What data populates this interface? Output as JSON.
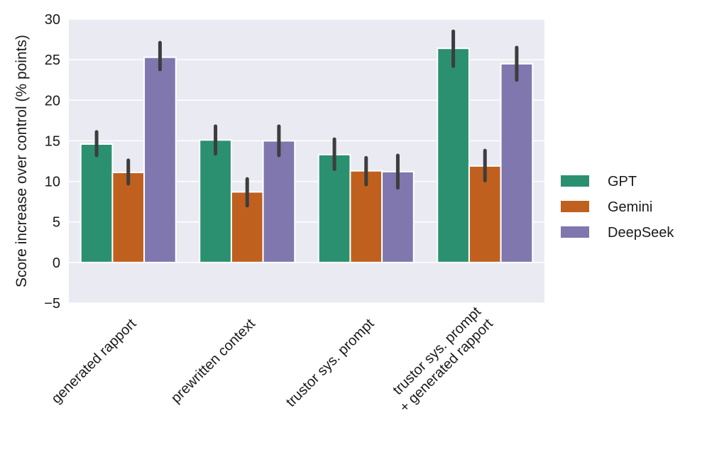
{
  "chart_data": {
    "type": "bar",
    "title": "",
    "xlabel": "",
    "ylabel": "Score increase over control (% points)",
    "ylim": [
      -5,
      30
    ],
    "yticks": [
      -5,
      0,
      5,
      10,
      15,
      20,
      25,
      30
    ],
    "ytick_labels": [
      "−5",
      "0",
      "5",
      "10",
      "15",
      "20",
      "25",
      "30"
    ],
    "grid": true,
    "legend_position": "right",
    "categories": [
      [
        "generated rapport"
      ],
      [
        "prewritten context"
      ],
      [
        "trustor sys. prompt"
      ],
      [
        "trustor sys. prompt",
        "+ generated rapport"
      ]
    ],
    "series": [
      {
        "name": "GPT",
        "color": "#2a9070",
        "values": [
          14.6,
          15.1,
          13.3,
          26.4
        ],
        "err_low": [
          13.2,
          13.4,
          11.5,
          24.2
        ],
        "err_high": [
          16.1,
          16.8,
          15.2,
          28.5
        ]
      },
      {
        "name": "Gemini",
        "color": "#c0601e",
        "values": [
          11.1,
          8.7,
          11.3,
          11.9
        ],
        "err_low": [
          9.7,
          7.0,
          9.6,
          10.1
        ],
        "err_high": [
          12.6,
          10.3,
          12.9,
          13.8
        ]
      },
      {
        "name": "DeepSeek",
        "color": "#7f77ae",
        "values": [
          25.3,
          15.0,
          11.2,
          24.5
        ],
        "err_low": [
          23.8,
          13.2,
          9.2,
          22.5
        ],
        "err_high": [
          27.1,
          16.8,
          13.2,
          26.5
        ]
      }
    ]
  }
}
